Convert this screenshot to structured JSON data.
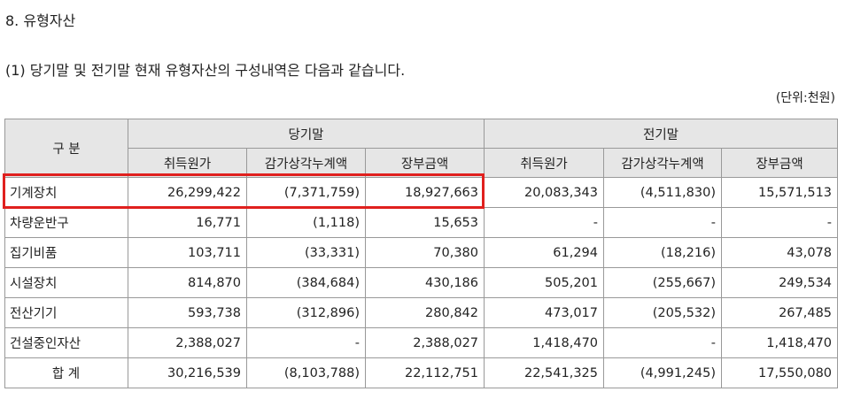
{
  "heading": "8. 유형자산",
  "subheading": "(1) 당기말 및 전기말 현재 유형자산의 구성내역은 다음과 같습니다.",
  "unit": "(단위:천원)",
  "table": {
    "header": {
      "category": "구 분",
      "current_period": "당기말",
      "prior_period": "전기말",
      "columns": [
        "취득원가",
        "감가상각누계액",
        "장부금액",
        "취득원가",
        "감가상각누계액",
        "장부금액"
      ]
    },
    "rows": [
      {
        "label": "기계장치",
        "values": [
          "26,299,422",
          "(7,371,759)",
          "18,927,663",
          "20,083,343",
          "(4,511,830)",
          "15,571,513"
        ]
      },
      {
        "label": "차량운반구",
        "values": [
          "16,771",
          "(1,118)",
          "15,653",
          "-",
          "-",
          "-"
        ]
      },
      {
        "label": "집기비품",
        "values": [
          "103,711",
          "(33,331)",
          "70,380",
          "61,294",
          "(18,216)",
          "43,078"
        ]
      },
      {
        "label": "시설장치",
        "values": [
          "814,870",
          "(384,684)",
          "430,186",
          "505,201",
          "(255,667)",
          "249,534"
        ]
      },
      {
        "label": "전산기기",
        "values": [
          "593,738",
          "(312,896)",
          "280,842",
          "473,017",
          "(205,532)",
          "267,485"
        ]
      },
      {
        "label": "건설중인자산",
        "values": [
          "2,388,027",
          "-",
          "2,388,027",
          "1,418,470",
          "-",
          "1,418,470"
        ]
      },
      {
        "label": "합  계",
        "values": [
          "30,216,539",
          "(8,103,788)",
          "22,112,751",
          "22,541,325",
          "(4,991,245)",
          "17,550,080"
        ]
      }
    ]
  },
  "highlight_color": "#e0201e"
}
